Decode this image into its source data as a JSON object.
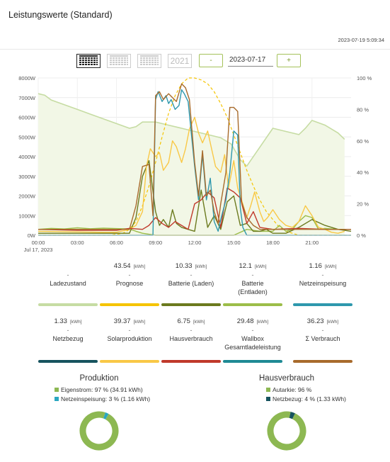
{
  "header": {
    "title": "Leistungswerte (Standard)",
    "timestamp": "2023-07-19 5:09:34"
  },
  "toolbar": {
    "year_label": "2021",
    "minus_label": "-",
    "plus_label": "+",
    "date_value": "2023-07-17"
  },
  "chart_data": {
    "type": "line",
    "x_unit": "time",
    "date_label": "Jul 17, 2023",
    "x_ticks": [
      "00:00",
      "03:00",
      "06:00",
      "09:00",
      "12:00",
      "15:00",
      "18:00",
      "21:00"
    ],
    "y_left_ticks": [
      "0W",
      "1000W",
      "2000W",
      "3000W",
      "4000W",
      "5000W",
      "6000W",
      "7000W",
      "8000W"
    ],
    "y_right_ticks": [
      "0 %",
      "20 %",
      "40 %",
      "60 %",
      "80 %",
      "100 %"
    ],
    "ylim_left": [
      0,
      8000
    ],
    "ylim_right": [
      0,
      100
    ],
    "series": [
      {
        "name": "Ladezustand",
        "axis": "right",
        "color": "#c6dca3",
        "x": [
          0,
          0.5,
          1,
          2,
          3,
          4,
          5,
          6,
          7,
          7.5,
          8,
          9,
          10,
          11,
          12,
          13,
          14,
          14.8,
          15.5,
          16,
          17,
          18,
          19,
          20,
          20.5,
          21,
          22,
          23,
          23.5
        ],
        "values": [
          90,
          89,
          86,
          83,
          80,
          77,
          74,
          71,
          68,
          69,
          72,
          72,
          70,
          68,
          66,
          64,
          62,
          58,
          48,
          44,
          56,
          68,
          66,
          64,
          68,
          73,
          70,
          65,
          61
        ]
      },
      {
        "name": "Prognose",
        "axis": "left",
        "color": "#f5c400",
        "x": [
          0,
          5.5,
          6.5,
          7,
          7.5,
          8,
          8.5,
          9,
          9.5,
          10,
          10.5,
          11,
          11.5,
          12,
          12.5,
          13,
          13.5,
          14,
          14.5,
          15,
          15.5,
          16,
          16.5,
          17,
          17.5,
          18,
          18.5,
          19,
          19.5,
          20,
          21,
          22,
          24
        ],
        "values": [
          0,
          0,
          100,
          300,
          700,
          1500,
          2500,
          3700,
          5000,
          6200,
          7100,
          7700,
          8000,
          8000,
          7900,
          7700,
          7300,
          6700,
          6000,
          5100,
          4200,
          3300,
          2500,
          1800,
          1200,
          800,
          400,
          200,
          100,
          0,
          0,
          0,
          0
        ]
      },
      {
        "name": "Solarproduktion",
        "axis": "left",
        "color": "#f9c846",
        "x": [
          0,
          5,
          6,
          7,
          7.5,
          8,
          8.3,
          8.6,
          9,
          9.3,
          9.6,
          10,
          10.3,
          10.6,
          11,
          11.3,
          11.6,
          12,
          12.3,
          12.6,
          13,
          13.3,
          13.6,
          14,
          14.3,
          14.6,
          15,
          15.3,
          15.6,
          16,
          16.3,
          16.6,
          17,
          17.3,
          17.6,
          18,
          18.5,
          19,
          19.5,
          20,
          20.5,
          21,
          21.5,
          22,
          22.5,
          23,
          23.5
        ],
        "values": [
          200,
          150,
          150,
          300,
          500,
          1200,
          3500,
          4400,
          4000,
          4200,
          3300,
          3700,
          4800,
          4500,
          3700,
          4400,
          5400,
          6000,
          5200,
          4700,
          5300,
          4400,
          3500,
          3200,
          4100,
          2400,
          3800,
          2400,
          1800,
          900,
          1500,
          2200,
          1200,
          700,
          900,
          1300,
          800,
          500,
          400,
          700,
          1500,
          1000,
          400,
          300,
          150,
          100,
          200
        ]
      },
      {
        "name": "Wallbox Gesamtladeleistung",
        "axis": "left",
        "color": "#2e98ad",
        "x": [
          0,
          8,
          8.8,
          9,
          9.2,
          9.5,
          9.8,
          10,
          10.2,
          10.5,
          10.8,
          11,
          11.2,
          11.5,
          12,
          12.3,
          12.6,
          12.9,
          13.2,
          13.5,
          13.8,
          14,
          14.4,
          14.7,
          15,
          15.3,
          15.5,
          15.7,
          16,
          24
        ],
        "values": [
          0,
          0,
          0,
          6900,
          7300,
          6800,
          7100,
          6700,
          6900,
          6400,
          6600,
          7400,
          7200,
          6800,
          3500,
          1800,
          4100,
          1800,
          2900,
          700,
          200,
          800,
          1800,
          3200,
          5300,
          5100,
          1400,
          400,
          0,
          0
        ]
      },
      {
        "name": "Hausverbrauch",
        "axis": "left",
        "color": "#c0392b",
        "x": [
          0,
          3,
          6,
          7,
          8,
          8.5,
          9,
          9.5,
          10,
          10.5,
          11,
          11.5,
          12,
          12.5,
          13,
          13.5,
          14,
          14.5,
          15,
          15.5,
          16,
          16.5,
          17,
          18,
          20,
          22,
          24
        ],
        "values": [
          300,
          250,
          250,
          350,
          300,
          500,
          900,
          600,
          400,
          700,
          500,
          300,
          1600,
          1800,
          2200,
          1900,
          400,
          2400,
          2200,
          1900,
          600,
          1200,
          400,
          300,
          350,
          300,
          300
        ]
      },
      {
        "name": "Σ Verbrauch",
        "axis": "left",
        "color": "#a86b2c",
        "x": [
          0,
          7,
          7.5,
          8,
          8.5,
          8.8,
          9,
          9.3,
          9.6,
          10,
          10.3,
          10.6,
          11,
          11.3,
          11.6,
          12,
          12.3,
          12.6,
          12.9,
          13.2,
          13.5,
          13.8,
          14,
          14.4,
          14.7,
          15,
          15.3,
          15.6,
          16,
          16.5,
          17,
          18,
          24
        ],
        "values": [
          300,
          300,
          1500,
          3500,
          3600,
          1000,
          7100,
          7300,
          6900,
          7200,
          7000,
          6800,
          7700,
          7500,
          6900,
          3700,
          2000,
          4300,
          2000,
          2300,
          1200,
          600,
          1600,
          3200,
          6500,
          6500,
          6300,
          1700,
          900,
          500,
          300,
          300,
          300
        ]
      },
      {
        "name": "Batterie (Laden)",
        "axis": "left",
        "color": "#6b7a1e",
        "x": [
          0,
          7,
          7.5,
          8,
          8.5,
          9,
          9.3,
          9.6,
          10,
          10.3,
          10.6,
          11,
          11.5,
          12,
          12.5,
          13,
          13.5,
          14,
          14.5,
          15,
          15.5,
          16,
          16.5,
          17,
          17.5,
          18,
          18.5,
          19,
          20,
          21,
          22,
          23,
          24
        ],
        "values": [
          100,
          100,
          900,
          3000,
          3800,
          1200,
          500,
          800,
          400,
          1300,
          600,
          400,
          300,
          200,
          2300,
          400,
          1000,
          300,
          1700,
          2000,
          500,
          600,
          200,
          200,
          300,
          100,
          100,
          100,
          400,
          800,
          500,
          300,
          200
        ]
      },
      {
        "name": "Batterie (Entladen)",
        "axis": "left",
        "color": "#9cbd49",
        "x": [
          0,
          1,
          2,
          3,
          4,
          5,
          6,
          7,
          7.5,
          8,
          9,
          10,
          11,
          12,
          13,
          14,
          15,
          16,
          17,
          18,
          18.5,
          19,
          19.5,
          20,
          20.5,
          21,
          21.5,
          22,
          23,
          24
        ],
        "values": [
          300,
          350,
          320,
          380,
          330,
          360,
          340,
          320,
          200,
          100,
          0,
          0,
          0,
          0,
          0,
          0,
          0,
          300,
          200,
          200,
          500,
          200,
          300,
          700,
          1000,
          900,
          300,
          350,
          300,
          300
        ]
      }
    ]
  },
  "tiles": [
    {
      "value": "",
      "unit": "",
      "label": "Ladezustand",
      "color": "#c6dca3"
    },
    {
      "value": "43.54",
      "unit": "[kWh]",
      "label": "Prognose",
      "color": "#f5c400"
    },
    {
      "value": "10.33",
      "unit": "[kWh]",
      "label": "Batterie (Laden)",
      "color": "#6b7a1e"
    },
    {
      "value": "12.1",
      "unit": "[kWh]",
      "label": "Batterie (Entladen)",
      "color": "#9cbd49"
    },
    {
      "value": "1.16",
      "unit": "[kWh]",
      "label": "Netzeinspeisung",
      "color": "#2e98ad"
    },
    {
      "value": "1.33",
      "unit": "[kWh]",
      "label": "Netzbezug",
      "color": "#16535e"
    },
    {
      "value": "39.37",
      "unit": "[kWh]",
      "label": "Solarproduktion",
      "color": "#f9c846"
    },
    {
      "value": "6.75",
      "unit": "[kWh]",
      "label": "Hausverbrauch",
      "color": "#c0392b"
    },
    {
      "value": "29.48",
      "unit": "[kWh]",
      "label": "Wallbox Gesamtladeleistung",
      "color": "#1f8a94"
    },
    {
      "value": "36.23",
      "unit": "[kWh]",
      "label": "Σ Verbrauch",
      "color": "#a86b2c"
    }
  ],
  "dash": "-",
  "pies": [
    {
      "title": "Produktion",
      "legend": [
        {
          "text": "Eigenstrom: 97 % (34.91 kWh)",
          "color": "#8db852"
        },
        {
          "text": "Netzeinspeisung: 3 % (1.16 kWh)",
          "color": "#2aa7c0"
        }
      ],
      "fractions": [
        0.97,
        0.03
      ]
    },
    {
      "title": "Hausverbrauch",
      "legend": [
        {
          "text": "Autarkie: 96 %",
          "color": "#8db852"
        },
        {
          "text": "Netzbezug: 4 % (1.33 kWh)",
          "color": "#16535e"
        }
      ],
      "fractions": [
        0.96,
        0.04
      ]
    }
  ]
}
